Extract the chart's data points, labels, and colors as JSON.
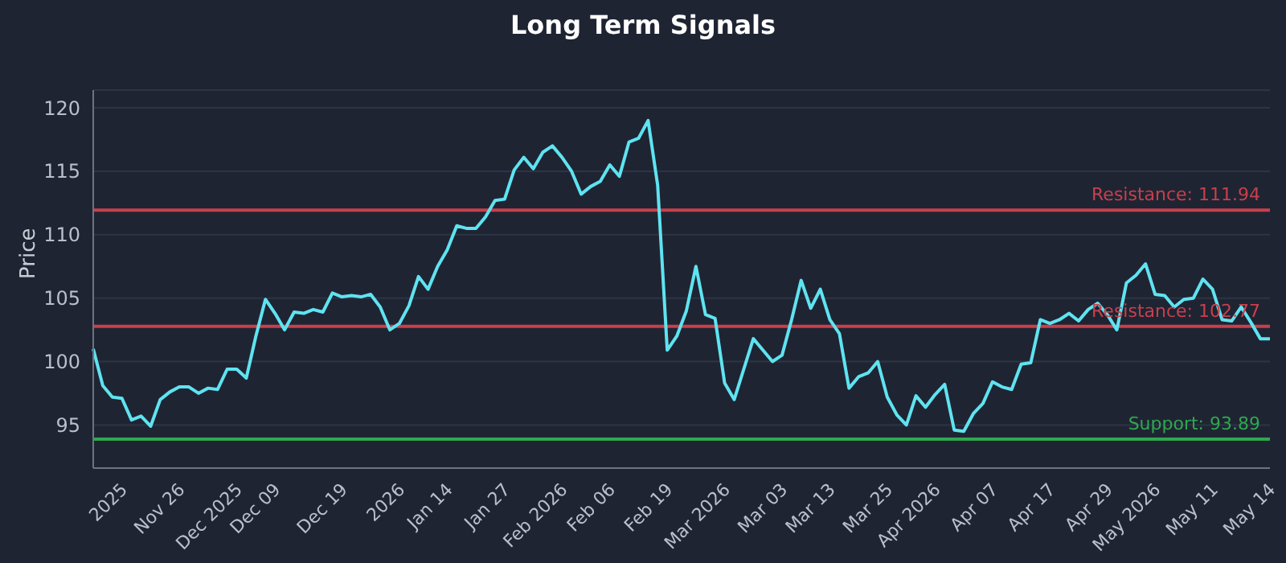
{
  "chart_data": {
    "type": "line",
    "title": "Long Term Signals",
    "ylabel": "Price",
    "categories": [
      null,
      null,
      null,
      "2025",
      null,
      null,
      null,
      null,
      null,
      "Nov 26",
      null,
      null,
      null,
      null,
      null,
      "Dec 2025",
      null,
      null,
      null,
      "Dec 09",
      null,
      null,
      null,
      null,
      null,
      null,
      "Dec 19",
      null,
      null,
      null,
      null,
      null,
      "2026",
      null,
      null,
      null,
      null,
      "Jan 14",
      null,
      null,
      null,
      null,
      null,
      "Jan 27",
      null,
      null,
      null,
      null,
      null,
      "Feb 2026",
      null,
      null,
      null,
      null,
      "Feb 06",
      null,
      null,
      null,
      null,
      null,
      "Feb 19",
      null,
      null,
      null,
      null,
      null,
      "Mar 2026",
      null,
      null,
      null,
      null,
      null,
      "Mar 03",
      null,
      null,
      null,
      null,
      "Mar 13",
      null,
      null,
      null,
      null,
      null,
      "Mar 25",
      null,
      null,
      null,
      null,
      "Apr 2026",
      null,
      null,
      null,
      null,
      null,
      "Apr 07",
      null,
      null,
      null,
      null,
      null,
      "Apr 17",
      null,
      null,
      null,
      null,
      null,
      "Apr 29",
      null,
      null,
      null,
      null,
      "May 2026",
      null,
      null,
      null,
      null,
      null,
      "May 11",
      null,
      null,
      null,
      null,
      null,
      "May 14"
    ],
    "series": [
      {
        "color": "#5fe3f0",
        "values": [
          101.0,
          98.1,
          97.2,
          97.1,
          95.4,
          95.7,
          94.9,
          97.0,
          97.6,
          98.0,
          98.0,
          97.5,
          97.9,
          97.8,
          99.4,
          99.4,
          98.7,
          102.0,
          104.9,
          103.8,
          102.5,
          103.9,
          103.8,
          104.1,
          103.9,
          105.4,
          105.1,
          105.2,
          105.1,
          105.3,
          104.3,
          102.5,
          103.0,
          104.4,
          106.7,
          105.7,
          107.5,
          108.8,
          110.7,
          110.5,
          110.5,
          111.4,
          112.7,
          112.8,
          115.1,
          116.1,
          115.2,
          116.5,
          117.0,
          116.1,
          115.0,
          113.2,
          113.8,
          114.2,
          115.5,
          114.6,
          117.3,
          117.6,
          119.0,
          113.9,
          100.9,
          102.0,
          104.0,
          107.5,
          103.7,
          103.4,
          98.3,
          97.0,
          99.4,
          101.8,
          100.9,
          100.0,
          100.5,
          103.3,
          106.4,
          104.2,
          105.7,
          103.3,
          102.2,
          97.9,
          98.8,
          99.1,
          100.0,
          97.2,
          95.8,
          95.0,
          97.3,
          96.4,
          97.4,
          98.2,
          94.6,
          94.5,
          95.9,
          96.7,
          98.4,
          98.0,
          97.8,
          99.8,
          99.9,
          103.3,
          103.0,
          103.3,
          103.8,
          103.2,
          104.1,
          104.6,
          103.7,
          102.5,
          106.2,
          106.8,
          107.7,
          105.3,
          105.2,
          104.3,
          104.9,
          105.0,
          106.5,
          105.7,
          103.3,
          103.2,
          104.3,
          103.1,
          101.8,
          101.8
        ]
      }
    ],
    "ylim": [
      91.6,
      121.4
    ],
    "yticks": [
      95,
      100,
      105,
      110,
      115,
      120
    ],
    "grid": "y",
    "legend": false,
    "marker": "none",
    "line_style": "solid",
    "ref_lines": [
      {
        "axis": "y",
        "value": 111.94,
        "label": "Resistance: 111.94",
        "color": "#c8404c"
      },
      {
        "axis": "y",
        "value": 102.77,
        "label": "Resistance: 102.77",
        "color": "#c8404c"
      },
      {
        "axis": "y",
        "value": 93.89,
        "label": "Support: 93.89",
        "color": "#2ea84e"
      }
    ]
  }
}
